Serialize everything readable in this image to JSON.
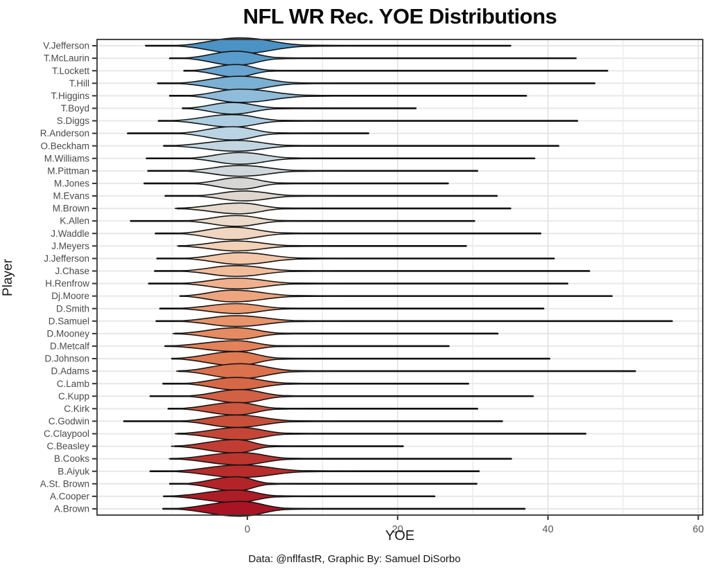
{
  "title": "NFL WR Rec. YOE Distributions",
  "caption": "Data: @nflfastR, Graphic By: Samuel DiSorbo",
  "chart_data": {
    "type": "violin",
    "orientation": "horizontal",
    "title": "NFL WR Rec. YOE Distributions",
    "xlabel": "YOE",
    "ylabel": "Player",
    "x_range": [
      -20,
      60.6
    ],
    "x_ticks": [
      0,
      20,
      40,
      60
    ],
    "x_gridlines_major": [
      0,
      20,
      40,
      60
    ],
    "x_gridlines_minor": [
      -10,
      10,
      30,
      50
    ],
    "grid": true,
    "legend": "none",
    "colors": {
      "panel_border": "#333333",
      "grid_major": "#e4e4e4",
      "grid_minor": "#ececec",
      "grid_horizontal": "#e8e8e8",
      "whisker": "#111111",
      "violin_outline": "#161616",
      "tick_label": "#555555",
      "player_label": "#4a4a4a",
      "colormap_stops": [
        "#4b92c5",
        "#6ca7d0",
        "#9cc4de",
        "#b9d4e4",
        "#ccd9e0",
        "#d9d6d1",
        "#ecdccb",
        "#f4d0b5",
        "#f2b694",
        "#ec9c74",
        "#e68a60",
        "#dd764f",
        "#d36245",
        "#c94e3b",
        "#c03a31",
        "#b52629",
        "#a81423"
      ]
    },
    "players": [
      {
        "name": "V.Jefferson",
        "line": [
          -13.5,
          35.0
        ],
        "body": [
          -10.0,
          14.0
        ],
        "mode": -1.0,
        "fat": 0.95
      },
      {
        "name": "T.McLaurin",
        "line": [
          -10.3,
          43.7
        ],
        "body": [
          -8.8,
          8.3
        ],
        "mode": -1.5,
        "fat": 0.85
      },
      {
        "name": "T.Lockett",
        "line": [
          -8.4,
          47.9
        ],
        "body": [
          -7.8,
          6.3
        ],
        "mode": -1.5,
        "fat": 0.75
      },
      {
        "name": "T.Hill",
        "line": [
          -11.9,
          46.2
        ],
        "body": [
          -9.8,
          11.9
        ],
        "mode": -1.0,
        "fat": 0.85
      },
      {
        "name": "T.Higgins",
        "line": [
          -10.3,
          37.1
        ],
        "body": [
          -8.3,
          14.5
        ],
        "mode": -1.0,
        "fat": 0.8
      },
      {
        "name": "T.Boyd",
        "line": [
          -8.6,
          22.4
        ],
        "body": [
          -8.5,
          8.0
        ],
        "mode": -2.0,
        "fat": 0.7
      },
      {
        "name": "S.Diggs",
        "line": [
          -11.8,
          43.9
        ],
        "body": [
          -10.6,
          9.0
        ],
        "mode": -2.0,
        "fat": 0.75
      },
      {
        "name": "R.Anderson",
        "line": [
          -15.9,
          16.1
        ],
        "body": [
          -9.6,
          8.0
        ],
        "mode": -2.0,
        "fat": 0.8
      },
      {
        "name": "O.Beckham",
        "line": [
          -11.1,
          41.4
        ],
        "body": [
          -10.6,
          10.9
        ],
        "mode": -1.5,
        "fat": 0.65
      },
      {
        "name": "M.Williams",
        "line": [
          -13.4,
          38.2
        ],
        "body": [
          -8.3,
          10.9
        ],
        "mode": -1.0,
        "fat": 0.7
      },
      {
        "name": "M.Pittman",
        "line": [
          -13.2,
          30.6
        ],
        "body": [
          -8.8,
          12.4
        ],
        "mode": -1.0,
        "fat": 0.65
      },
      {
        "name": "M.Jones",
        "line": [
          -13.7,
          26.7
        ],
        "body": [
          -7.5,
          8.0
        ],
        "mode": -1.0,
        "fat": 0.7
      },
      {
        "name": "M.Evans",
        "line": [
          -10.9,
          33.2
        ],
        "body": [
          -7.3,
          10.9
        ],
        "mode": -0.5,
        "fat": 0.6
      },
      {
        "name": "M.Brown",
        "line": [
          -9.3,
          35.0
        ],
        "body": [
          -9.6,
          8.8
        ],
        "mode": -1.0,
        "fat": 0.65
      },
      {
        "name": "K.Allen",
        "line": [
          -15.5,
          30.2
        ],
        "body": [
          -8.5,
          8.8
        ],
        "mode": -1.5,
        "fat": 0.65
      },
      {
        "name": "J.Waddle",
        "line": [
          -12.2,
          39.0
        ],
        "body": [
          -9.5,
          10.0
        ],
        "mode": -2.0,
        "fat": 0.75
      },
      {
        "name": "J.Meyers",
        "line": [
          -9.1,
          29.1
        ],
        "body": [
          -9.3,
          10.9
        ],
        "mode": -1.5,
        "fat": 0.6
      },
      {
        "name": "J.Jefferson",
        "line": [
          -12.0,
          40.8
        ],
        "body": [
          -8.8,
          13.0
        ],
        "mode": -1.0,
        "fat": 0.7
      },
      {
        "name": "J.Chase",
        "line": [
          -12.3,
          45.5
        ],
        "body": [
          -9.3,
          11.4
        ],
        "mode": -1.5,
        "fat": 0.65
      },
      {
        "name": "H.Renfrow",
        "line": [
          -13.1,
          42.6
        ],
        "body": [
          -9.1,
          11.9
        ],
        "mode": -1.5,
        "fat": 0.65
      },
      {
        "name": "Dj.Moore",
        "line": [
          -8.9,
          48.5
        ],
        "body": [
          -9.0,
          12.4
        ],
        "mode": -2.0,
        "fat": 0.7
      },
      {
        "name": "D.Smith",
        "line": [
          -11.6,
          39.4
        ],
        "body": [
          -9.6,
          9.8
        ],
        "mode": -1.5,
        "fat": 0.6
      },
      {
        "name": "D.Samuel",
        "line": [
          -12.1,
          56.5
        ],
        "body": [
          -9.6,
          12.4
        ],
        "mode": -1.5,
        "fat": 0.65
      },
      {
        "name": "D.Mooney",
        "line": [
          -9.6,
          33.3
        ],
        "body": [
          -9.9,
          8.8
        ],
        "mode": -1.5,
        "fat": 0.7
      },
      {
        "name": "D.Metcalf",
        "line": [
          -10.9,
          26.8
        ],
        "body": [
          -11.0,
          8.0
        ],
        "mode": -1.5,
        "fat": 0.65
      },
      {
        "name": "D.Johnson",
        "line": [
          -10.0,
          40.2
        ],
        "body": [
          -10.1,
          8.5
        ],
        "mode": -1.5,
        "fat": 0.85
      },
      {
        "name": "D.Adams",
        "line": [
          -9.1,
          51.6
        ],
        "body": [
          -9.4,
          11.4
        ],
        "mode": -1.0,
        "fat": 0.9
      },
      {
        "name": "C.Lamb",
        "line": [
          -11.2,
          29.4
        ],
        "body": [
          -8.8,
          10.4
        ],
        "mode": -1.5,
        "fat": 0.75
      },
      {
        "name": "C.Kupp",
        "line": [
          -12.9,
          38.0
        ],
        "body": [
          -8.5,
          9.3
        ],
        "mode": -1.0,
        "fat": 0.8
      },
      {
        "name": "C.Kirk",
        "line": [
          -10.5,
          30.6
        ],
        "body": [
          -9.6,
          8.0
        ],
        "mode": -1.5,
        "fat": 0.75
      },
      {
        "name": "C.Godwin",
        "line": [
          -16.4,
          33.9
        ],
        "body": [
          -9.3,
          11.4
        ],
        "mode": -1.5,
        "fat": 0.75
      },
      {
        "name": "C.Claypool",
        "line": [
          -9.3,
          45.0
        ],
        "body": [
          -9.6,
          9.8
        ],
        "mode": -1.0,
        "fat": 0.75
      },
      {
        "name": "C.Beasley",
        "line": [
          -9.6,
          20.7
        ],
        "body": [
          -10.1,
          6.5
        ],
        "mode": -1.5,
        "fat": 0.8
      },
      {
        "name": "B.Cooks",
        "line": [
          -10.2,
          35.1
        ],
        "body": [
          -10.4,
          10.4
        ],
        "mode": -1.0,
        "fat": 0.75
      },
      {
        "name": "B.Aiyuk",
        "line": [
          -12.9,
          30.8
        ],
        "body": [
          -10.6,
          14.0
        ],
        "mode": -1.0,
        "fat": 0.75
      },
      {
        "name": "A.St. Brown",
        "line": [
          -10.3,
          30.5
        ],
        "body": [
          -8.8,
          6.3
        ],
        "mode": -1.5,
        "fat": 0.85
      },
      {
        "name": "A.Cooper",
        "line": [
          -11.1,
          24.9
        ],
        "body": [
          -11.0,
          8.0
        ],
        "mode": -1.5,
        "fat": 0.75
      },
      {
        "name": "A.Brown",
        "line": [
          -11.2,
          36.9
        ],
        "body": [
          -10.4,
          9.8
        ],
        "mode": -1.0,
        "fat": 0.9
      }
    ]
  }
}
